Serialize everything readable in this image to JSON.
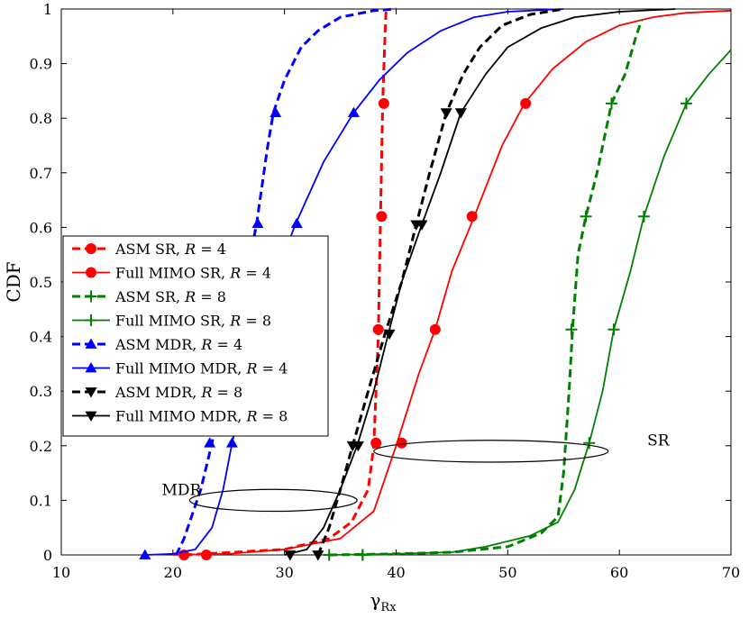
{
  "chart_data": {
    "type": "line",
    "title": "",
    "xlabel": "γ",
    "xlabel_sub": "Rx",
    "ylabel": "CDF",
    "xlim": [
      10,
      70
    ],
    "ylim": [
      0,
      1
    ],
    "xticks": [
      10,
      20,
      30,
      40,
      50,
      60,
      70
    ],
    "yticks": [
      0,
      0.1,
      0.2,
      0.3,
      0.4,
      0.5,
      0.6,
      0.7,
      0.8,
      0.9,
      1
    ],
    "grid": false,
    "legend_position": "center-left",
    "series": [
      {
        "name": "ASM SR",
        "r_label": "R = 4",
        "color": "#ff0000",
        "dash": true,
        "marker": "circle",
        "points": [
          [
            21,
            0
          ],
          [
            30,
            0.01
          ],
          [
            34,
            0.03
          ],
          [
            36,
            0.06
          ],
          [
            37.5,
            0.12
          ],
          [
            38,
            0.2
          ],
          [
            38.4,
            0.4
          ],
          [
            38.6,
            0.62
          ],
          [
            38.8,
            0.83
          ],
          [
            39,
            0.95
          ],
          [
            39.1,
            1
          ]
        ],
        "markers": [
          [
            38.2,
            0.205
          ],
          [
            38.4,
            0.413
          ],
          [
            38.7,
            0.62
          ],
          [
            38.9,
            0.827
          ]
        ]
      },
      {
        "name": "Full MIMO SR",
        "r_label": "R = 4",
        "color": "#ff0000",
        "dash": false,
        "marker": "circle",
        "points": [
          [
            20,
            0
          ],
          [
            25,
            0.002
          ],
          [
            30,
            0.01
          ],
          [
            35,
            0.03
          ],
          [
            38,
            0.08
          ],
          [
            40,
            0.2
          ],
          [
            42,
            0.33
          ],
          [
            43.5,
            0.413
          ],
          [
            45,
            0.52
          ],
          [
            47,
            0.62
          ],
          [
            49.5,
            0.75
          ],
          [
            51.5,
            0.827
          ],
          [
            54,
            0.89
          ],
          [
            57,
            0.94
          ],
          [
            60,
            0.97
          ],
          [
            63,
            0.985
          ],
          [
            66,
            0.993
          ],
          [
            70,
            0.997
          ]
        ],
        "markers": [
          [
            21,
            0
          ],
          [
            23,
            0
          ],
          [
            40.5,
            0.205
          ],
          [
            43.5,
            0.413
          ],
          [
            46.8,
            0.62
          ],
          [
            51.6,
            0.827
          ]
        ]
      },
      {
        "name": "ASM SR",
        "r_label": "R = 8",
        "color": "#008000",
        "dash": true,
        "marker": "plus",
        "points": [
          [
            34,
            0
          ],
          [
            40,
            0.002
          ],
          [
            45,
            0.005
          ],
          [
            50,
            0.015
          ],
          [
            53,
            0.04
          ],
          [
            54.5,
            0.07
          ],
          [
            55,
            0.15
          ],
          [
            55.5,
            0.3
          ],
          [
            55.8,
            0.413
          ],
          [
            56.3,
            0.55
          ],
          [
            57,
            0.62
          ],
          [
            58,
            0.7
          ],
          [
            59.3,
            0.827
          ],
          [
            60.5,
            0.88
          ],
          [
            61.5,
            0.95
          ],
          [
            62,
            0.98
          ]
        ],
        "markers": [
          [
            34,
            0
          ],
          [
            37,
            0
          ],
          [
            55.7,
            0.413
          ],
          [
            57,
            0.62
          ],
          [
            59.3,
            0.827
          ]
        ]
      },
      {
        "name": "Full MIMO SR",
        "r_label": "R = 8",
        "color": "#008000",
        "dash": false,
        "marker": "plus",
        "points": [
          [
            34,
            0
          ],
          [
            40,
            0.002
          ],
          [
            45,
            0.005
          ],
          [
            48,
            0.015
          ],
          [
            52,
            0.035
          ],
          [
            54.5,
            0.06
          ],
          [
            56,
            0.12
          ],
          [
            57.3,
            0.205
          ],
          [
            58.5,
            0.3
          ],
          [
            59.5,
            0.413
          ],
          [
            61,
            0.52
          ],
          [
            62.2,
            0.62
          ],
          [
            64,
            0.73
          ],
          [
            66,
            0.827
          ],
          [
            68,
            0.88
          ],
          [
            70,
            0.925
          ]
        ],
        "markers": [
          [
            37,
            0
          ],
          [
            57.3,
            0.205
          ],
          [
            59.5,
            0.413
          ],
          [
            62.2,
            0.62
          ],
          [
            66,
            0.827
          ]
        ]
      },
      {
        "name": "ASM MDR",
        "r_label": "R = 4",
        "color": "#0000ff",
        "dash": true,
        "marker": "triangle-up",
        "points": [
          [
            20.3,
            0
          ],
          [
            21,
            0.03
          ],
          [
            22.5,
            0.12
          ],
          [
            23.5,
            0.205
          ],
          [
            25,
            0.35
          ],
          [
            26.5,
            0.5
          ],
          [
            27.5,
            0.607
          ],
          [
            28.5,
            0.75
          ],
          [
            29,
            0.81
          ],
          [
            30,
            0.87
          ],
          [
            31.5,
            0.93
          ],
          [
            33,
            0.96
          ],
          [
            35,
            0.985
          ],
          [
            38,
            0.997
          ],
          [
            40,
            1
          ]
        ],
        "markers": [
          [
            23.3,
            0.205
          ],
          [
            27.6,
            0.607
          ],
          [
            29.2,
            0.81
          ]
        ]
      },
      {
        "name": "Full MIMO MDR",
        "r_label": "R = 4",
        "color": "#0000ff",
        "dash": false,
        "marker": "triangle-up",
        "points": [
          [
            17.5,
            0
          ],
          [
            20,
            0.002
          ],
          [
            22,
            0.01
          ],
          [
            23.5,
            0.05
          ],
          [
            24.5,
            0.12
          ],
          [
            25.3,
            0.205
          ],
          [
            27,
            0.35
          ],
          [
            29,
            0.5
          ],
          [
            31,
            0.607
          ],
          [
            33.5,
            0.72
          ],
          [
            36.2,
            0.81
          ],
          [
            38.5,
            0.87
          ],
          [
            41,
            0.92
          ],
          [
            44,
            0.96
          ],
          [
            47,
            0.985
          ],
          [
            50,
            0.995
          ],
          [
            55,
            1
          ]
        ],
        "markers": [
          [
            17.5,
            0
          ],
          [
            25.3,
            0.205
          ],
          [
            31.1,
            0.607
          ],
          [
            36.2,
            0.81
          ]
        ]
      },
      {
        "name": "ASM MDR",
        "r_label": "R = 8",
        "color": "#000000",
        "dash": true,
        "marker": "triangle-down",
        "points": [
          [
            33,
            0
          ],
          [
            34,
            0.05
          ],
          [
            35,
            0.12
          ],
          [
            36.1,
            0.2
          ],
          [
            37.5,
            0.3
          ],
          [
            39,
            0.405
          ],
          [
            40.5,
            0.5
          ],
          [
            41.8,
            0.605
          ],
          [
            43,
            0.7
          ],
          [
            44.5,
            0.81
          ],
          [
            46,
            0.88
          ],
          [
            47.5,
            0.93
          ],
          [
            49.5,
            0.97
          ],
          [
            52,
            0.99
          ],
          [
            55,
            1
          ]
        ],
        "markers": [
          [
            33,
            0
          ],
          [
            36.1,
            0.2
          ],
          [
            41.8,
            0.605
          ],
          [
            44.5,
            0.81
          ]
        ]
      },
      {
        "name": "Full MIMO MDR",
        "r_label": "R = 8",
        "color": "#000000",
        "dash": false,
        "marker": "triangle-down",
        "points": [
          [
            30,
            0
          ],
          [
            32,
            0.01
          ],
          [
            33.5,
            0.05
          ],
          [
            35,
            0.12
          ],
          [
            36.5,
            0.2
          ],
          [
            38,
            0.3
          ],
          [
            39.3,
            0.405
          ],
          [
            40.5,
            0.5
          ],
          [
            42.3,
            0.605
          ],
          [
            44,
            0.7
          ],
          [
            45.8,
            0.81
          ],
          [
            48,
            0.88
          ],
          [
            50,
            0.93
          ],
          [
            53,
            0.965
          ],
          [
            56,
            0.985
          ],
          [
            60,
            0.995
          ],
          [
            65,
            1
          ]
        ],
        "markers": [
          [
            30.5,
            0
          ],
          [
            36.6,
            0.2
          ],
          [
            39.4,
            0.405
          ],
          [
            42.3,
            0.605
          ],
          [
            45.8,
            0.81
          ]
        ]
      }
    ],
    "annotations": [
      {
        "text": "SR",
        "ellipse_center": [
          48.5,
          0.19
        ],
        "ellipse_radii": [
          10.5,
          0.02
        ],
        "label_at": [
          62.5,
          0.21
        ]
      },
      {
        "text": "MDR",
        "ellipse_center": [
          29,
          0.1
        ],
        "ellipse_radii": [
          7.5,
          0.02
        ],
        "label_at": [
          19,
          0.12
        ]
      }
    ]
  }
}
